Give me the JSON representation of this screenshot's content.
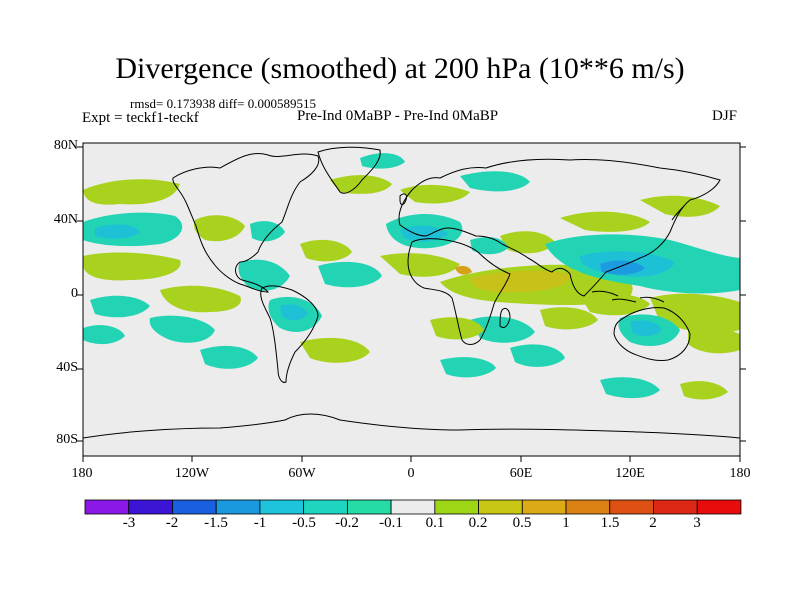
{
  "title": "Divergence (smoothed) at 200 hPa (10**6 m/s)",
  "stats": "rmsd= 0.173938 diff= 0.000589515",
  "expt": "Expt = teckf1-teckf",
  "subtitle": "Pre-Ind 0MaBP - Pre-Ind 0MaBP",
  "season": "DJF",
  "y_axis": {
    "ticks": [
      "80N",
      "40N",
      "0",
      "40S",
      "80S"
    ]
  },
  "x_axis": {
    "ticks": [
      "180",
      "120W",
      "60W",
      "0",
      "60E",
      "120E",
      "180"
    ]
  },
  "colorbar": {
    "labels": [
      "-3",
      "-2",
      "-1.5",
      "-1",
      "-0.5",
      "-0.2",
      "-0.1",
      "0.1",
      "0.2",
      "0.5",
      "1",
      "1.5",
      "2",
      "3"
    ],
    "colors": [
      "#8b18e6",
      "#3c14d6",
      "#1a5fe0",
      "#1a98e0",
      "#1ec3dc",
      "#1ed6c0",
      "#26dca6",
      "#ececec",
      "#9cd614",
      "#c8c814",
      "#dcaa14",
      "#dc8214",
      "#dc5014",
      "#dc2814",
      "#e80c0c"
    ]
  },
  "colors": {
    "background": "#ececec",
    "pos_weak": "#a8d21e",
    "pos_mid": "#c6c21a",
    "pos_strong": "#d6a21a",
    "neg_weak": "#22d4b4",
    "neg_mid": "#1ec0d6",
    "neg_strong": "#1d9be0",
    "coast": "#000000"
  }
}
